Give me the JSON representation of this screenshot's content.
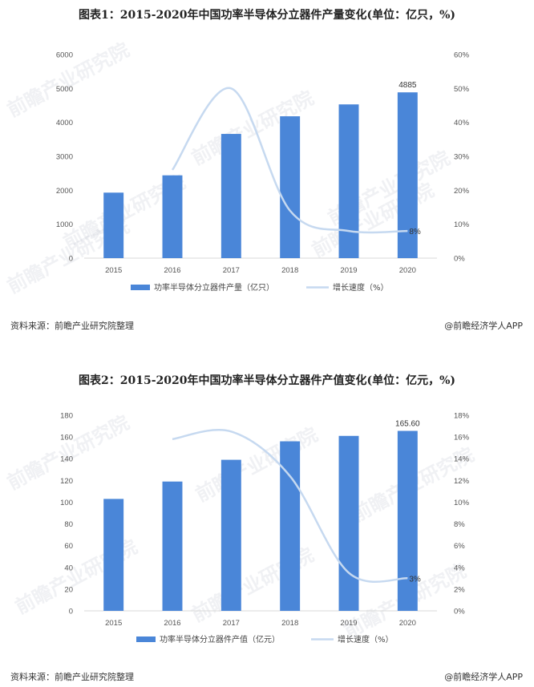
{
  "chart_data": [
    {
      "type": "bar",
      "title": "图表1：2015-2020年中国功率半导体分立器件产量变化(单位：亿只，%)",
      "categories": [
        "2015",
        "2016",
        "2017",
        "2018",
        "2019",
        "2020"
      ],
      "series": [
        {
          "name": "功率半导体分立器件产量（亿只）",
          "type": "bar",
          "axis": "left",
          "values": [
            1930,
            2440,
            3660,
            4180,
            4530,
            4885
          ]
        },
        {
          "name": "增长速度（%）",
          "type": "line",
          "axis": "right",
          "values": [
            null,
            26,
            50,
            14,
            8,
            8
          ]
        }
      ],
      "left_ylim": [
        0,
        6000
      ],
      "left_ticks": [
        "0",
        "1000",
        "2000",
        "3000",
        "4000",
        "5000",
        "6000"
      ],
      "right_ylim": [
        0,
        60
      ],
      "right_ticks": [
        "0%",
        "10%",
        "20%",
        "30%",
        "40%",
        "50%",
        "60%"
      ],
      "data_labels": [
        {
          "series": 0,
          "index": 5,
          "text": "4885"
        },
        {
          "series": 1,
          "index": 5,
          "text": "8%"
        }
      ],
      "bar_color": "#4a86d8",
      "line_color": "#c6d9f0",
      "grid": false,
      "legend": "bottom",
      "source": "资料来源：前瞻产业研究院整理",
      "credit": "@前瞻经济学人APP"
    },
    {
      "type": "bar",
      "title": "图表2：2015-2020年中国功率半导体分立器件产值变化(单位：亿元，%)",
      "categories": [
        "2015",
        "2016",
        "2017",
        "2018",
        "2019",
        "2020"
      ],
      "series": [
        {
          "name": "功率半导体分立器件产值（亿元）",
          "type": "bar",
          "axis": "left",
          "values": [
            103,
            119,
            139,
            156,
            161,
            165.6
          ]
        },
        {
          "name": "增长速度（%）",
          "type": "line",
          "axis": "right",
          "values": [
            null,
            15.8,
            16.5,
            12.4,
            3.5,
            3
          ]
        }
      ],
      "left_ylim": [
        0,
        180
      ],
      "left_ticks": [
        "0",
        "20",
        "40",
        "60",
        "80",
        "100",
        "120",
        "140",
        "160",
        "180"
      ],
      "right_ylim": [
        0,
        18
      ],
      "right_ticks": [
        "0%",
        "2%",
        "4%",
        "6%",
        "8%",
        "10%",
        "12%",
        "14%",
        "16%",
        "18%"
      ],
      "data_labels": [
        {
          "series": 0,
          "index": 5,
          "text": "165.60"
        },
        {
          "series": 1,
          "index": 5,
          "text": "3%"
        }
      ],
      "bar_color": "#4a86d8",
      "line_color": "#c6d9f0",
      "grid": false,
      "legend": "bottom",
      "source": "资料来源：前瞻产业研究院整理",
      "credit": "@前瞻经济学人APP"
    }
  ],
  "watermark": "前瞻产业研究院"
}
